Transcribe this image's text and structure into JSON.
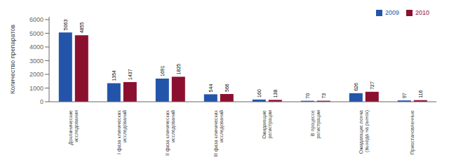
{
  "chart_data": {
    "type": "bar",
    "categories": [
      "Доклинические\nисследования",
      "I фаза клинических\nисследований",
      "II фаза клинических\nисследований",
      "III фаза клинических\nисследований",
      "Ожидающие\nрегистрации",
      "В процессе\nрегистрации",
      "Ожидающие лонча\n(выхода на рынок)",
      "Приостановленные"
    ],
    "series": [
      {
        "name": "2009",
        "color": "#2255AA",
        "values": [
          5063,
          1354,
          1691,
          544,
          160,
          70,
          626,
          97
        ]
      },
      {
        "name": "2010",
        "color": "#8B1030",
        "values": [
          4855,
          1437,
          1825,
          566,
          138,
          73,
          727,
          116
        ]
      }
    ],
    "ylabel": "Количество препаратов",
    "ylim": [
      0,
      6200
    ],
    "yticks": [
      0,
      1000,
      2000,
      3000,
      4000,
      5000,
      6000
    ],
    "data_labels": true,
    "legend": "upper right",
    "grid": false
  }
}
